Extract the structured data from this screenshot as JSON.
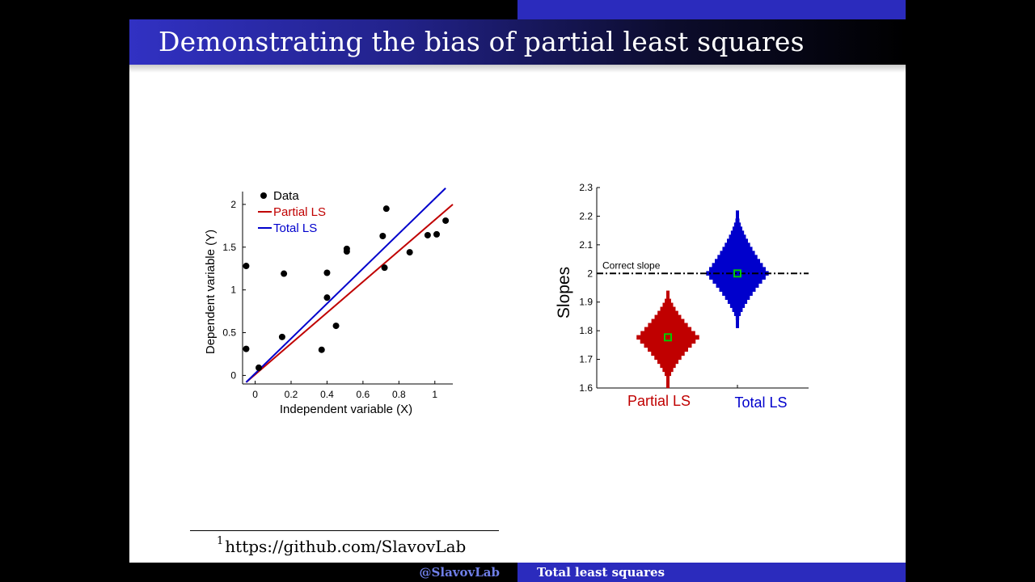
{
  "slide": {
    "title": "Demonstrating the bias of partial least squares",
    "footnote_marker": "1",
    "footnote_text": "https://github.com/SlavovLab",
    "footer_left": "@SlavovLab",
    "footer_right": "Total least squares"
  },
  "colors": {
    "title_bar": "#2b2bbd",
    "partial": "#c00000",
    "total": "#0000cc",
    "marker": "#00cc00"
  },
  "chart_data": [
    {
      "type": "scatter",
      "xlabel": "Independent variable (X)",
      "ylabel": "Dependent variable (Y)",
      "xlim": [
        -0.07,
        1.1
      ],
      "ylim": [
        -0.1,
        2.15
      ],
      "xticks": [
        "0",
        "0.2",
        "0.4",
        "0.6",
        "0.8",
        "1"
      ],
      "xtick_values": [
        0,
        0.2,
        0.4,
        0.6,
        0.8,
        1.0
      ],
      "yticks": [
        "0",
        "0.5",
        "1",
        "1.5",
        "2"
      ],
      "ytick_values": [
        0,
        0.5,
        1,
        1.5,
        2
      ],
      "legend": [
        "Data",
        "Partial LS",
        "Total LS"
      ],
      "legend_position": "top-left",
      "points": [
        [
          -0.05,
          1.28
        ],
        [
          -0.05,
          0.31
        ],
        [
          0.02,
          0.09
        ],
        [
          0.15,
          0.45
        ],
        [
          0.16,
          1.19
        ],
        [
          0.37,
          0.3
        ],
        [
          0.4,
          1.2
        ],
        [
          0.4,
          0.91
        ],
        [
          0.45,
          0.58
        ],
        [
          0.51,
          1.45
        ],
        [
          0.51,
          1.48
        ],
        [
          0.71,
          1.63
        ],
        [
          0.72,
          1.26
        ],
        [
          0.73,
          1.95
        ],
        [
          0.86,
          1.44
        ],
        [
          0.96,
          1.64
        ],
        [
          1.01,
          1.65
        ],
        [
          1.06,
          1.81
        ]
      ],
      "lines": [
        {
          "name": "Partial LS",
          "color": "#c00000",
          "x": [
            -0.05,
            1.1
          ],
          "y": [
            -0.08,
            2.0
          ]
        },
        {
          "name": "Total LS",
          "color": "#0000cc",
          "x": [
            -0.05,
            1.06
          ],
          "y": [
            -0.08,
            2.19
          ]
        }
      ]
    },
    {
      "type": "violin",
      "ylabel": "Slopes",
      "ylim": [
        1.6,
        2.3
      ],
      "yticks": [
        "1.6",
        "1.7",
        "1.8",
        "1.9",
        "2",
        "2.1",
        "2.2",
        "2.3"
      ],
      "ytick_values": [
        1.6,
        1.7,
        1.8,
        1.9,
        2.0,
        2.1,
        2.2,
        2.3
      ],
      "categories": [
        "Partial LS",
        "Total LS"
      ],
      "reference_line": {
        "label": "Correct slope",
        "value": 2.0
      },
      "series": [
        {
          "name": "Partial LS",
          "color": "#c00000",
          "center": 1.777,
          "min": 1.615,
          "max": 1.94
        },
        {
          "name": "Total LS",
          "color": "#0000cc",
          "center": 2.0,
          "min": 1.82,
          "max": 2.22
        }
      ]
    }
  ]
}
